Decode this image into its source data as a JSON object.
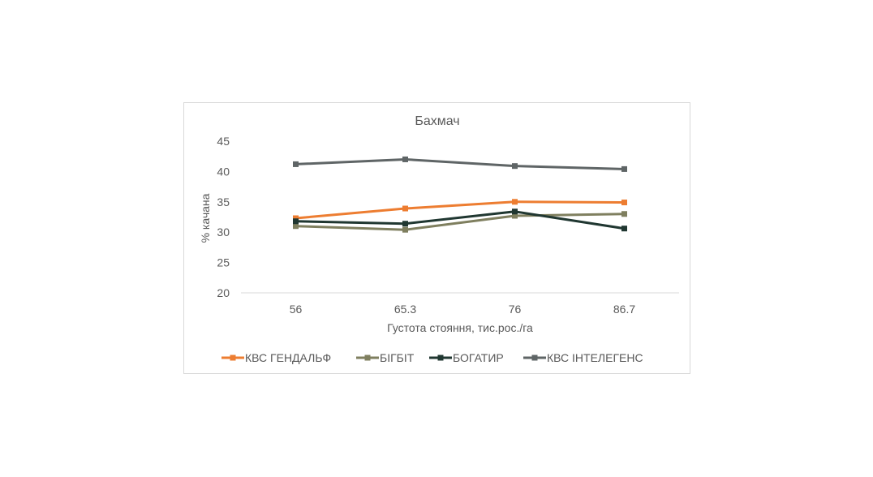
{
  "chart_data": {
    "type": "line",
    "title": "Бахмач",
    "xlabel": "Густота стояння, тис.рос./га",
    "ylabel": "% качана",
    "categories": [
      "56",
      "65.3",
      "76",
      "86.7"
    ],
    "ylim": [
      20,
      45
    ],
    "yticks": [
      "20",
      "25",
      "30",
      "35",
      "40",
      "45"
    ],
    "grid": "horizontal baseline only",
    "legend_position": "bottom",
    "series": [
      {
        "name": "КВС ГЕНДАЛЬФ",
        "color": "#ED7D31",
        "values": [
          32.3,
          33.9,
          35.0,
          34.9
        ]
      },
      {
        "name": "БІГБІТ",
        "color": "#7F7F5F",
        "values": [
          31.0,
          30.4,
          32.7,
          33.0
        ]
      },
      {
        "name": "БОГАТИР",
        "color": "#203731",
        "values": [
          31.8,
          31.4,
          33.4,
          30.6
        ]
      },
      {
        "name": "КВС ІНТЕЛЕГЕНС",
        "color": "#5F6566",
        "values": [
          41.2,
          42.0,
          40.9,
          40.4
        ]
      }
    ]
  }
}
